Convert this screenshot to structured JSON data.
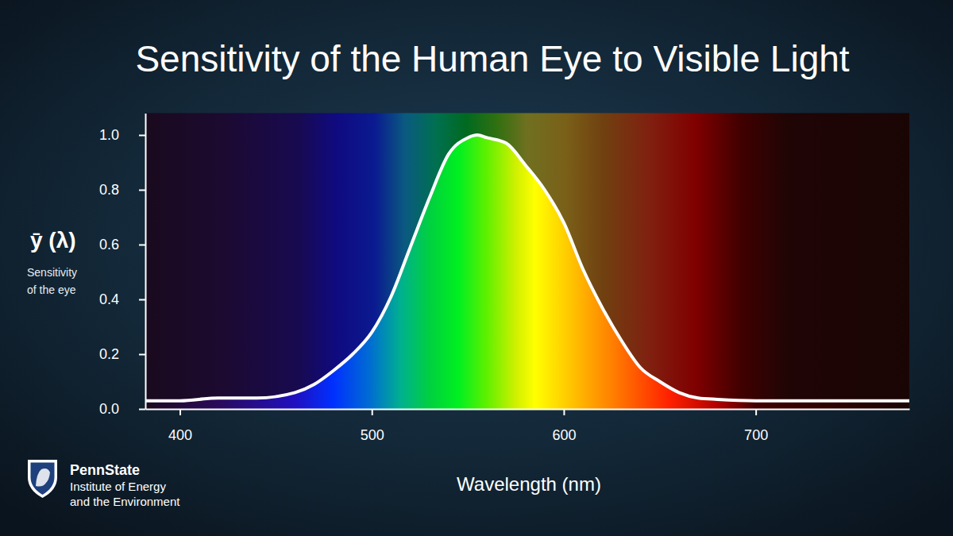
{
  "chart_data": {
    "type": "line",
    "title": "Sensitivity of the Human Eye to Visible Light",
    "xlabel": "Wavelength (nm)",
    "ylabel": "ȳ (λ)",
    "ylabel_caption": [
      "Sensitivity",
      "of the eye"
    ],
    "x": [
      382,
      400,
      420,
      440,
      460,
      470,
      480,
      490,
      500,
      510,
      520,
      530,
      540,
      550,
      555,
      560,
      570,
      580,
      590,
      600,
      610,
      620,
      630,
      640,
      650,
      660,
      670,
      680,
      700,
      720,
      750,
      780
    ],
    "values": [
      0.03,
      0.03,
      0.04,
      0.04,
      0.06,
      0.09,
      0.14,
      0.2,
      0.28,
      0.41,
      0.59,
      0.77,
      0.93,
      0.99,
      1.0,
      0.99,
      0.97,
      0.89,
      0.8,
      0.68,
      0.51,
      0.37,
      0.25,
      0.15,
      0.1,
      0.06,
      0.04,
      0.035,
      0.03,
      0.03,
      0.03,
      0.03
    ],
    "color": "#ffffff",
    "xlim": [
      382,
      780
    ],
    "ylim": [
      0,
      1.08
    ],
    "xticks": [
      400,
      500,
      600,
      700
    ],
    "yticks": [
      {
        "value": 0,
        "label": "0.0"
      },
      0.2,
      0.4,
      0.6,
      0.8,
      {
        "value": 1,
        "label": "1.0"
      }
    ],
    "grid": false
  },
  "logo": {
    "name": "PennState",
    "lines": [
      "Institute of Energy",
      "and the Environment"
    ]
  }
}
